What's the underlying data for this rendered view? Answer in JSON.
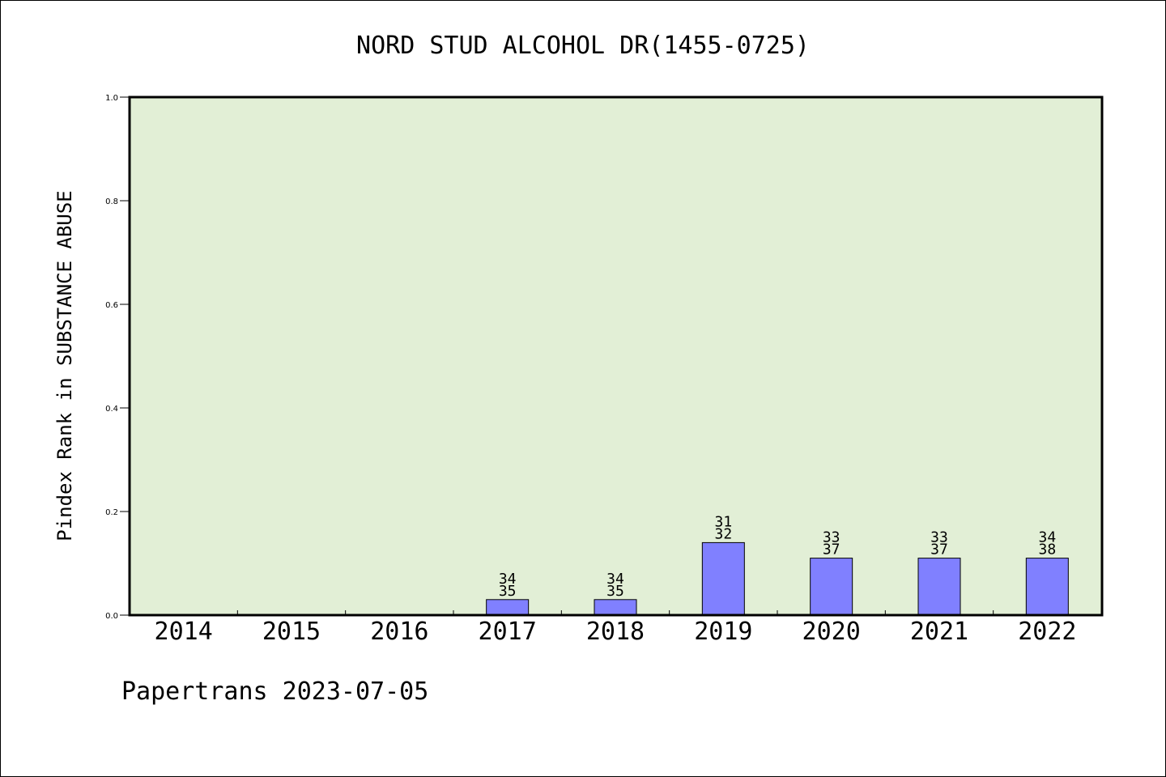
{
  "chart_data": {
    "type": "bar",
    "title": "NORD STUD ALCOHOL DR(1455-0725)",
    "ylabel": "Pindex Rank in SUBSTANCE ABUSE",
    "xlabel": "",
    "ylim": [
      0,
      1.0
    ],
    "yticks": [
      "0.0",
      "0.2",
      "0.4",
      "0.6",
      "0.8",
      "1.0"
    ],
    "categories": [
      "2014",
      "2015",
      "2016",
      "2017",
      "2018",
      "2019",
      "2020",
      "2021",
      "2022"
    ],
    "values": [
      0,
      0,
      0,
      0.03,
      0.03,
      0.14,
      0.11,
      0.11,
      0.11
    ],
    "bar_labels": [
      null,
      null,
      null,
      [
        "34",
        "35"
      ],
      [
        "34",
        "35"
      ],
      [
        "31",
        "32"
      ],
      [
        "33",
        "37"
      ],
      [
        "33",
        "37"
      ],
      [
        "34",
        "38"
      ]
    ],
    "grid": false,
    "colors": {
      "plot_bg": "#e2efd6",
      "bar": "#8080ff",
      "axis": "#000000"
    }
  },
  "footer": {
    "credit": "Papertrans 2023-07-05"
  }
}
